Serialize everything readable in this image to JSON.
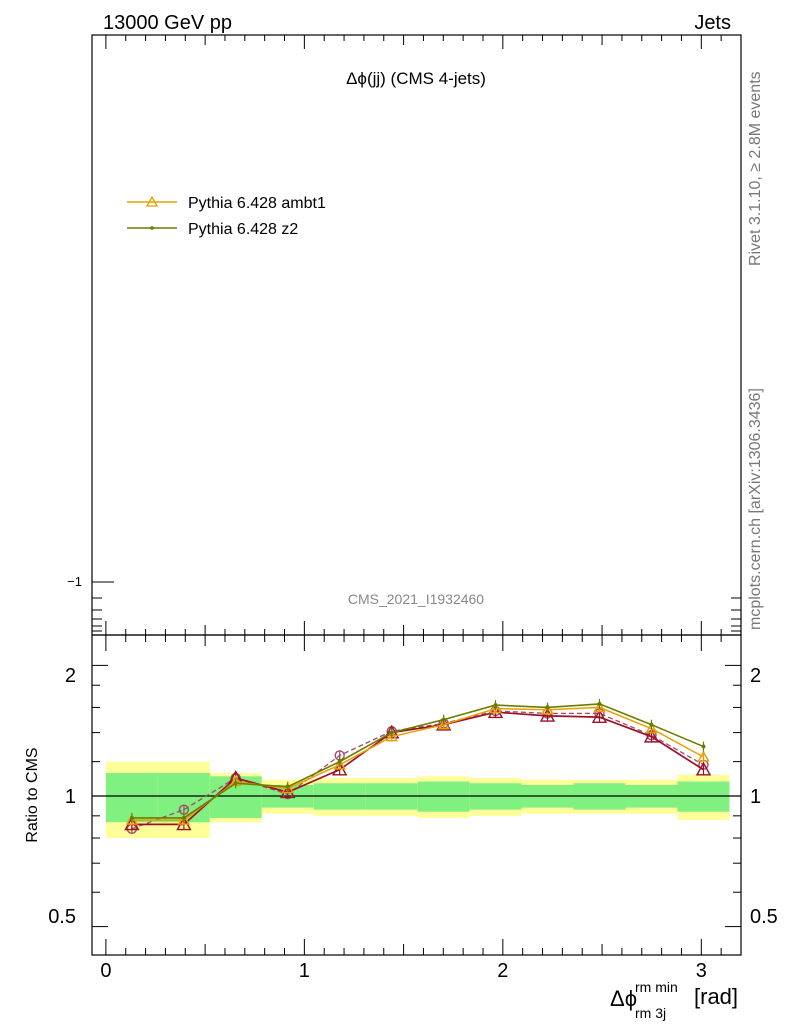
{
  "header": {
    "left": "13000 GeV pp",
    "right": "Jets"
  },
  "side_labels": {
    "rivet": "Rivet 3.1.10, ≥ 2.8M events",
    "mcplots": "mcplots.cern.ch [arXiv:1306.3436]"
  },
  "main_panel": {
    "title": "Δϕ(jj) (CMS 4-jets)",
    "analysis_ref": "CMS_2021_I1932460",
    "y_tick_label": "−1"
  },
  "ratio_panel": {
    "ylabel": "Ratio to CMS",
    "yticks": [
      "0.5",
      "1",
      "2"
    ]
  },
  "x_axis": {
    "label_main": "Δϕ",
    "label_sup": "rm min",
    "label_sub": "rm 3j",
    "label_unit": "[rad]",
    "ticks": [
      "0",
      "1",
      "2",
      "3"
    ]
  },
  "colors": {
    "ambt1": "#e8a000",
    "z2": "#6b7d00",
    "dark_red": "#9c1028",
    "dashed": "#a34a6a",
    "band_inner": "#80f080",
    "band_outer": "#ffff99"
  },
  "chart_data": {
    "type": "line",
    "xlim": [
      -0.07,
      3.2
    ],
    "ylim_ratio": [
      0.43,
      2.35
    ],
    "yscale": "log",
    "bin_edges": [
      0,
      0.262,
      0.524,
      0.785,
      1.047,
      1.309,
      1.571,
      1.833,
      2.094,
      2.356,
      2.618,
      2.88,
      3.142
    ],
    "x": [
      0.131,
      0.393,
      0.654,
      0.916,
      1.178,
      1.44,
      1.702,
      1.963,
      2.225,
      2.487,
      2.749,
      3.011
    ],
    "uncertainty_band": {
      "inner": [
        0.13,
        0.13,
        0.11,
        0.06,
        0.07,
        0.07,
        0.08,
        0.07,
        0.06,
        0.07,
        0.06,
        0.08
      ],
      "outer": [
        0.2,
        0.2,
        0.13,
        0.09,
        0.1,
        0.1,
        0.11,
        0.1,
        0.09,
        0.09,
        0.09,
        0.12
      ]
    },
    "series": [
      {
        "name": "Pythia 6.428 ambt1",
        "marker": "triangle-open",
        "values": [
          0.88,
          0.88,
          1.08,
          1.04,
          1.18,
          1.37,
          1.46,
          1.59,
          1.58,
          1.6,
          1.43,
          1.23
        ]
      },
      {
        "name": "Pythia 6.428 z2",
        "marker": "dot",
        "values": [
          0.89,
          0.89,
          1.07,
          1.05,
          1.2,
          1.4,
          1.5,
          1.62,
          1.6,
          1.63,
          1.46,
          1.3
        ]
      },
      {
        "marker": "triangle-open",
        "values": [
          0.86,
          0.86,
          1.1,
          1.02,
          1.15,
          1.4,
          1.46,
          1.56,
          1.53,
          1.52,
          1.37,
          1.15
        ]
      },
      {
        "marker": "circle-open",
        "dashed": true,
        "values": [
          0.84,
          0.93,
          1.1,
          1.01,
          1.24,
          1.41,
          1.47,
          1.57,
          1.55,
          1.55,
          1.38,
          1.18
        ]
      }
    ]
  }
}
